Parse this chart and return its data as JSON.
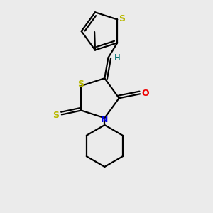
{
  "background_color": "#ebebeb",
  "bond_color": "#000000",
  "S_color": "#b8b800",
  "N_color": "#0000ee",
  "O_color": "#ee0000",
  "H_color": "#007070",
  "line_width": 1.6,
  "figsize": [
    3.0,
    3.0
  ],
  "dpi": 100,
  "xlim": [
    0,
    3.0
  ],
  "ylim": [
    0,
    3.0
  ]
}
